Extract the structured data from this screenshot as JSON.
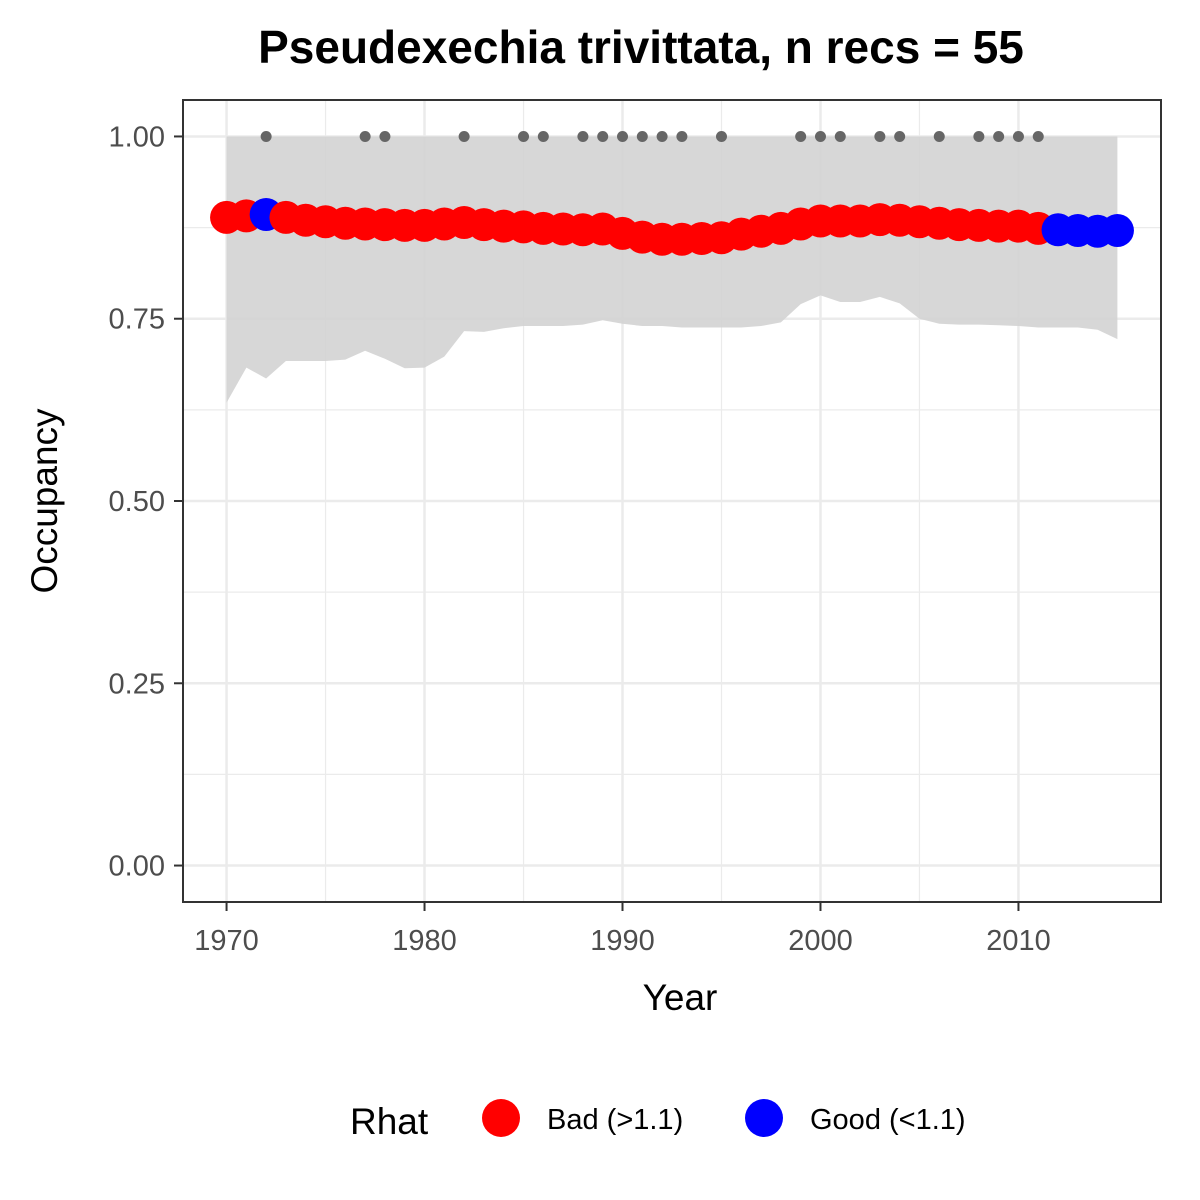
{
  "chart_data": {
    "type": "line",
    "title": "Pseudexechia trivittata, n recs = 55",
    "xlabel": "Year",
    "ylabel": "Occupancy",
    "xlim": [
      1967.8,
      2017.2
    ],
    "ylim": [
      -0.05,
      1.05
    ],
    "x_ticks": [
      1970,
      1980,
      1990,
      2000,
      2010
    ],
    "y_ticks": [
      0.0,
      0.25,
      0.5,
      0.75,
      1.0
    ],
    "y_tick_labels": [
      "0.00",
      "0.25",
      "0.50",
      "0.75",
      "1.00"
    ],
    "grid": true,
    "legend": {
      "position": "bottom",
      "title": "Rhat",
      "entries": [
        {
          "label": "Bad (>1.1)",
          "color": "#ff0000"
        },
        {
          "label": "Good (<1.1)",
          "color": "#0000ff"
        }
      ]
    },
    "ribbon_color": "#d3d3d3",
    "record_dot_color": "#666666",
    "years": [
      1970,
      1971,
      1972,
      1973,
      1974,
      1975,
      1976,
      1977,
      1978,
      1979,
      1980,
      1981,
      1982,
      1983,
      1984,
      1985,
      1986,
      1987,
      1988,
      1989,
      1990,
      1991,
      1992,
      1993,
      1994,
      1995,
      1996,
      1997,
      1998,
      1999,
      2000,
      2001,
      2002,
      2003,
      2004,
      2005,
      2006,
      2007,
      2008,
      2009,
      2010,
      2011,
      2012,
      2013,
      2014,
      2015
    ],
    "occupancy": [
      0.889,
      0.891,
      0.893,
      0.889,
      0.885,
      0.883,
      0.881,
      0.88,
      0.879,
      0.878,
      0.878,
      0.88,
      0.882,
      0.879,
      0.877,
      0.876,
      0.874,
      0.873,
      0.872,
      0.873,
      0.867,
      0.862,
      0.859,
      0.859,
      0.86,
      0.861,
      0.866,
      0.87,
      0.874,
      0.88,
      0.884,
      0.884,
      0.884,
      0.886,
      0.885,
      0.883,
      0.881,
      0.879,
      0.878,
      0.877,
      0.877,
      0.874,
      0.872,
      0.871,
      0.87,
      0.871
    ],
    "rhat_status": [
      "Bad (>1.1)",
      "Bad (>1.1)",
      "Good (<1.1)",
      "Bad (>1.1)",
      "Bad (>1.1)",
      "Bad (>1.1)",
      "Bad (>1.1)",
      "Bad (>1.1)",
      "Bad (>1.1)",
      "Bad (>1.1)",
      "Bad (>1.1)",
      "Bad (>1.1)",
      "Bad (>1.1)",
      "Bad (>1.1)",
      "Bad (>1.1)",
      "Bad (>1.1)",
      "Bad (>1.1)",
      "Bad (>1.1)",
      "Bad (>1.1)",
      "Bad (>1.1)",
      "Bad (>1.1)",
      "Bad (>1.1)",
      "Bad (>1.1)",
      "Bad (>1.1)",
      "Bad (>1.1)",
      "Bad (>1.1)",
      "Bad (>1.1)",
      "Bad (>1.1)",
      "Bad (>1.1)",
      "Bad (>1.1)",
      "Bad (>1.1)",
      "Bad (>1.1)",
      "Bad (>1.1)",
      "Bad (>1.1)",
      "Bad (>1.1)",
      "Bad (>1.1)",
      "Bad (>1.1)",
      "Bad (>1.1)",
      "Bad (>1.1)",
      "Bad (>1.1)",
      "Bad (>1.1)",
      "Bad (>1.1)",
      "Good (<1.1)",
      "Good (<1.1)",
      "Good (<1.1)",
      "Good (<1.1)"
    ],
    "ci_lower": [
      0.635,
      0.683,
      0.668,
      0.692,
      0.692,
      0.692,
      0.694,
      0.706,
      0.695,
      0.682,
      0.683,
      0.698,
      0.733,
      0.732,
      0.737,
      0.74,
      0.74,
      0.74,
      0.742,
      0.748,
      0.743,
      0.74,
      0.74,
      0.738,
      0.738,
      0.738,
      0.738,
      0.74,
      0.745,
      0.77,
      0.782,
      0.773,
      0.773,
      0.78,
      0.771,
      0.75,
      0.743,
      0.742,
      0.742,
      0.741,
      0.74,
      0.738,
      0.738,
      0.738,
      0.735,
      0.722
    ],
    "ci_upper": [
      1.0,
      1.0,
      1.0,
      1.0,
      1.0,
      1.0,
      1.0,
      1.0,
      1.0,
      1.0,
      1.0,
      1.0,
      1.0,
      1.0,
      1.0,
      1.0,
      1.0,
      1.0,
      1.0,
      1.0,
      1.0,
      1.0,
      1.0,
      1.0,
      1.0,
      1.0,
      1.0,
      1.0,
      1.0,
      1.0,
      1.0,
      1.0,
      1.0,
      1.0,
      1.0,
      1.0,
      1.0,
      1.0,
      1.0,
      1.0,
      1.0,
      1.0,
      1.0,
      1.0,
      1.0,
      1.0
    ],
    "record_years": [
      1972,
      1977,
      1978,
      1982,
      1985,
      1986,
      1988,
      1989,
      1990,
      1991,
      1992,
      1993,
      1995,
      1999,
      2000,
      2001,
      2003,
      2004,
      2006,
      2008,
      2009,
      2010,
      2011
    ],
    "record_value": 1.0
  }
}
